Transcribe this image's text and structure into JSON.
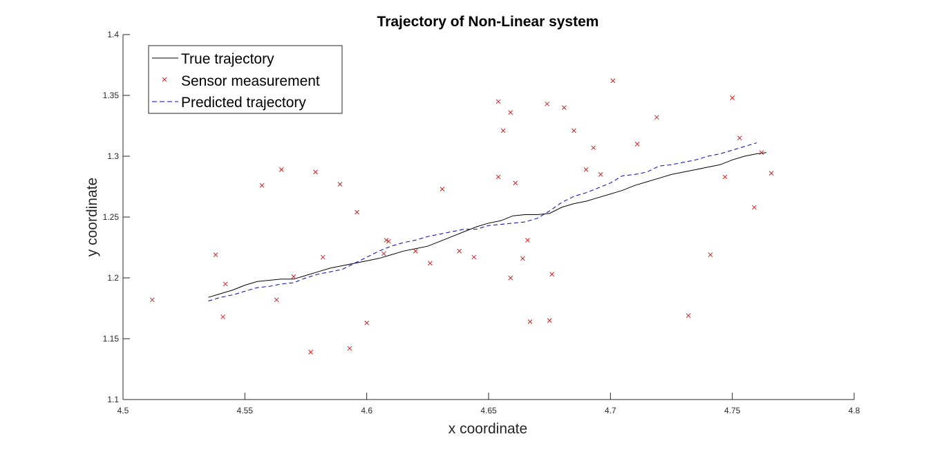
{
  "chart_data": {
    "type": "line",
    "title": "Trajectory of Non-Linear system",
    "xlabel": "x coordinate",
    "ylabel": "y coordinate",
    "xlim": [
      4.5,
      4.8
    ],
    "ylim": [
      1.1,
      1.4
    ],
    "xticks": [
      4.5,
      4.55,
      4.6,
      4.65,
      4.7,
      4.75,
      4.8
    ],
    "yticks": [
      1.1,
      1.15,
      1.2,
      1.25,
      1.3,
      1.35,
      1.4
    ],
    "xtick_labels": [
      "4.5",
      "4.55",
      "4.6",
      "4.65",
      "4.7",
      "4.75",
      "4.8"
    ],
    "ytick_labels": [
      "1.1",
      "1.15",
      "1.2",
      "1.25",
      "1.3",
      "1.35",
      "1.4"
    ],
    "grid": false,
    "legend_position": "top-left",
    "series": [
      {
        "name": "True trajectory",
        "style": "solid",
        "marker": "none",
        "color": "#000000",
        "points": [
          [
            4.535,
            1.184
          ],
          [
            4.54,
            1.187
          ],
          [
            4.545,
            1.19
          ],
          [
            4.55,
            1.194
          ],
          [
            4.555,
            1.197
          ],
          [
            4.56,
            1.198
          ],
          [
            4.565,
            1.199
          ],
          [
            4.57,
            1.199
          ],
          [
            4.575,
            1.202
          ],
          [
            4.58,
            1.205
          ],
          [
            4.585,
            1.208
          ],
          [
            4.59,
            1.21
          ],
          [
            4.595,
            1.212
          ],
          [
            4.6,
            1.214
          ],
          [
            4.605,
            1.216
          ],
          [
            4.61,
            1.219
          ],
          [
            4.615,
            1.222
          ],
          [
            4.62,
            1.224
          ],
          [
            4.625,
            1.226
          ],
          [
            4.63,
            1.23
          ],
          [
            4.635,
            1.234
          ],
          [
            4.64,
            1.238
          ],
          [
            4.645,
            1.242
          ],
          [
            4.65,
            1.245
          ],
          [
            4.655,
            1.247
          ],
          [
            4.66,
            1.251
          ],
          [
            4.665,
            1.252
          ],
          [
            4.67,
            1.252
          ],
          [
            4.675,
            1.253
          ],
          [
            4.68,
            1.258
          ],
          [
            4.685,
            1.261
          ],
          [
            4.69,
            1.263
          ],
          [
            4.695,
            1.266
          ],
          [
            4.7,
            1.269
          ],
          [
            4.705,
            1.272
          ],
          [
            4.71,
            1.276
          ],
          [
            4.715,
            1.279
          ],
          [
            4.72,
            1.282
          ],
          [
            4.725,
            1.285
          ],
          [
            4.73,
            1.287
          ],
          [
            4.735,
            1.289
          ],
          [
            4.74,
            1.291
          ],
          [
            4.745,
            1.293
          ],
          [
            4.75,
            1.297
          ],
          [
            4.755,
            1.3
          ],
          [
            4.76,
            1.302
          ],
          [
            4.764,
            1.303
          ]
        ]
      },
      {
        "name": "Sensor measurement",
        "style": "none",
        "marker": "x",
        "color": "#cc2020",
        "points": [
          [
            4.512,
            1.182
          ],
          [
            4.538,
            1.219
          ],
          [
            4.541,
            1.168
          ],
          [
            4.542,
            1.195
          ],
          [
            4.557,
            1.276
          ],
          [
            4.563,
            1.182
          ],
          [
            4.565,
            1.289
          ],
          [
            4.57,
            1.201
          ],
          [
            4.577,
            1.139
          ],
          [
            4.579,
            1.287
          ],
          [
            4.582,
            1.217
          ],
          [
            4.589,
            1.277
          ],
          [
            4.593,
            1.142
          ],
          [
            4.596,
            1.254
          ],
          [
            4.6,
            1.163
          ],
          [
            4.607,
            1.22
          ],
          [
            4.608,
            1.231
          ],
          [
            4.609,
            1.23
          ],
          [
            4.62,
            1.222
          ],
          [
            4.626,
            1.212
          ],
          [
            4.631,
            1.273
          ],
          [
            4.638,
            1.222
          ],
          [
            4.644,
            1.217
          ],
          [
            4.654,
            1.283
          ],
          [
            4.654,
            1.345
          ],
          [
            4.656,
            1.321
          ],
          [
            4.659,
            1.2
          ],
          [
            4.659,
            1.336
          ],
          [
            4.661,
            1.278
          ],
          [
            4.664,
            1.216
          ],
          [
            4.666,
            1.231
          ],
          [
            4.667,
            1.164
          ],
          [
            4.674,
            1.343
          ],
          [
            4.675,
            1.165
          ],
          [
            4.676,
            1.203
          ],
          [
            4.681,
            1.34
          ],
          [
            4.685,
            1.321
          ],
          [
            4.69,
            1.289
          ],
          [
            4.693,
            1.307
          ],
          [
            4.696,
            1.285
          ],
          [
            4.701,
            1.362
          ],
          [
            4.711,
            1.31
          ],
          [
            4.719,
            1.332
          ],
          [
            4.732,
            1.169
          ],
          [
            4.741,
            1.219
          ],
          [
            4.747,
            1.283
          ],
          [
            4.75,
            1.348
          ],
          [
            4.753,
            1.315
          ],
          [
            4.759,
            1.258
          ],
          [
            4.762,
            1.303
          ],
          [
            4.766,
            1.286
          ]
        ]
      },
      {
        "name": "Predicted trajectory",
        "style": "dashed",
        "marker": "none",
        "color": "#0000cc",
        "points": [
          [
            4.535,
            1.181
          ],
          [
            4.54,
            1.184
          ],
          [
            4.545,
            1.186
          ],
          [
            4.55,
            1.189
          ],
          [
            4.555,
            1.192
          ],
          [
            4.56,
            1.193
          ],
          [
            4.565,
            1.195
          ],
          [
            4.57,
            1.196
          ],
          [
            4.575,
            1.2
          ],
          [
            4.58,
            1.203
          ],
          [
            4.585,
            1.205
          ],
          [
            4.59,
            1.207
          ],
          [
            4.595,
            1.212
          ],
          [
            4.6,
            1.217
          ],
          [
            4.605,
            1.222
          ],
          [
            4.61,
            1.226
          ],
          [
            4.615,
            1.229
          ],
          [
            4.62,
            1.231
          ],
          [
            4.625,
            1.234
          ],
          [
            4.63,
            1.236
          ],
          [
            4.635,
            1.238
          ],
          [
            4.64,
            1.24
          ],
          [
            4.645,
            1.24
          ],
          [
            4.65,
            1.243
          ],
          [
            4.655,
            1.244
          ],
          [
            4.66,
            1.245
          ],
          [
            4.665,
            1.246
          ],
          [
            4.67,
            1.249
          ],
          [
            4.675,
            1.255
          ],
          [
            4.68,
            1.262
          ],
          [
            4.685,
            1.267
          ],
          [
            4.69,
            1.27
          ],
          [
            4.695,
            1.274
          ],
          [
            4.7,
            1.278
          ],
          [
            4.705,
            1.284
          ],
          [
            4.71,
            1.285
          ],
          [
            4.715,
            1.287
          ],
          [
            4.72,
            1.292
          ],
          [
            4.725,
            1.293
          ],
          [
            4.73,
            1.295
          ],
          [
            4.735,
            1.297
          ],
          [
            4.74,
            1.3
          ],
          [
            4.745,
            1.302
          ],
          [
            4.75,
            1.305
          ],
          [
            4.755,
            1.308
          ],
          [
            4.76,
            1.311
          ]
        ]
      }
    ]
  }
}
